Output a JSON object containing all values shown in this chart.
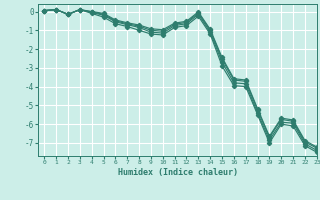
{
  "xlabel": "Humidex (Indice chaleur)",
  "background_color": "#cceee8",
  "grid_color": "#ffffff",
  "line_color": "#2e7d6e",
  "xlim": [
    -0.5,
    23
  ],
  "ylim": [
    -7.7,
    0.4
  ],
  "yticks": [
    0,
    -1,
    -2,
    -3,
    -4,
    -5,
    -6,
    -7
  ],
  "xticks": [
    0,
    1,
    2,
    3,
    4,
    5,
    6,
    7,
    8,
    9,
    10,
    11,
    12,
    13,
    14,
    15,
    16,
    17,
    18,
    19,
    20,
    21,
    22,
    23
  ],
  "x": [
    0,
    1,
    2,
    3,
    4,
    5,
    6,
    7,
    8,
    9,
    10,
    11,
    12,
    13,
    14,
    15,
    16,
    17,
    18,
    19,
    20,
    21,
    22,
    23
  ],
  "lines": [
    [
      0.05,
      0.1,
      -0.15,
      0.1,
      -0.05,
      -0.2,
      -0.55,
      -0.7,
      -0.85,
      -1.1,
      -1.15,
      -0.75,
      -0.65,
      -0.15,
      -1.1,
      -2.7,
      -3.8,
      -3.85,
      -5.4,
      -6.85,
      -5.9,
      -5.95,
      -7.05,
      -7.4
    ],
    [
      0.05,
      0.1,
      -0.15,
      0.1,
      -0.1,
      -0.3,
      -0.65,
      -0.8,
      -1.0,
      -1.2,
      -1.25,
      -0.85,
      -0.75,
      -0.25,
      -1.2,
      -2.9,
      -3.95,
      -4.0,
      -5.5,
      -7.0,
      -6.0,
      -6.1,
      -7.15,
      -7.5
    ],
    [
      0.05,
      0.1,
      -0.15,
      0.1,
      -0.02,
      -0.15,
      -0.5,
      -0.65,
      -0.78,
      -1.0,
      -1.05,
      -0.68,
      -0.58,
      -0.08,
      -1.0,
      -2.55,
      -3.65,
      -3.72,
      -5.25,
      -6.72,
      -5.75,
      -5.85,
      -6.95,
      -7.28
    ],
    [
      0.05,
      0.1,
      -0.15,
      0.1,
      0.0,
      -0.1,
      -0.45,
      -0.6,
      -0.72,
      -0.92,
      -0.97,
      -0.62,
      -0.52,
      -0.02,
      -0.95,
      -2.45,
      -3.58,
      -3.65,
      -5.18,
      -6.65,
      -5.68,
      -5.78,
      -6.88,
      -7.22
    ]
  ]
}
